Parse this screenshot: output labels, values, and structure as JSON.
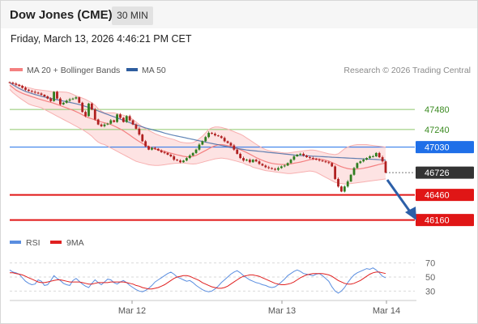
{
  "header": {
    "title": "Dow Jones (CME)",
    "timeframe": "30 MIN",
    "datetime": "Friday, March 13, 2026 4:46:21 PM CET"
  },
  "legend": {
    "bollinger": "MA 20 + Bollinger Bands",
    "ma50": "MA 50",
    "copyright": "Research © 2026 Trading Central"
  },
  "rsi_legend": {
    "rsi": "RSI",
    "ma9": "9MA"
  },
  "colors": {
    "bollinger": "#f48080",
    "band_fill": "#fde0e0",
    "ma50": "#2e5d9f",
    "support": "#e01616",
    "pivot": "#1f6fe8",
    "resistance": "#8dc86b",
    "candle_up": "#2f7d1f",
    "candle_down": "#b02020",
    "arrow": "#2c5fa8",
    "rsi": "#5a8ee0",
    "rsi_ma": "#e02020",
    "last": "#333333"
  },
  "chart_data": [
    {
      "type": "candlestick",
      "title": "Dow Jones (CME)",
      "timeframe": "30 MIN",
      "x_tick_labels": [
        "Mar 12",
        "Mar 13",
        "Mar 14"
      ],
      "ylim": [
        46050,
        47800
      ],
      "levels": [
        {
          "value": 47480,
          "label": "47480",
          "kind": "resistance"
        },
        {
          "value": 47240,
          "label": "47240",
          "kind": "resistance"
        },
        {
          "value": 47030,
          "label": "47030",
          "kind": "pivot"
        },
        {
          "value": 46726,
          "label": "46726",
          "kind": "last"
        },
        {
          "value": 46460,
          "label": "46460",
          "kind": "support"
        },
        {
          "value": 46160,
          "label": "46160",
          "kind": "support"
        }
      ],
      "close": [
        47800,
        47788,
        47775,
        47760,
        47738,
        47715,
        47700,
        47690,
        47680,
        47670,
        47655,
        47635,
        47610,
        47580,
        47690,
        47610,
        47540,
        47560,
        47585,
        47600,
        47610,
        47625,
        47560,
        47450,
        47400,
        47550,
        47480,
        47360,
        47300,
        47280,
        47300,
        47310,
        47350,
        47330,
        47420,
        47380,
        47330,
        47400,
        47350,
        47300,
        47250,
        47180,
        47100,
        47040,
        47000,
        47020,
        47010,
        46990,
        46970,
        46960,
        46940,
        46920,
        46880,
        46870,
        46850,
        46870,
        46900,
        46930,
        46960,
        47000,
        47060,
        47100,
        47150,
        47200,
        47190,
        47170,
        47160,
        47140,
        47100,
        47080,
        47050,
        47000,
        46950,
        46900,
        46870,
        46880,
        46850,
        46880,
        46860,
        46830,
        46810,
        46790,
        46780,
        46770,
        46760,
        46780,
        46800,
        46810,
        46840,
        46880,
        46920,
        46940,
        46950,
        46930,
        46910,
        46900,
        46890,
        46880,
        46870,
        46860,
        46850,
        46840,
        46800,
        46650,
        46560,
        46500,
        46560,
        46620,
        46700,
        46780,
        46840,
        46860,
        46880,
        46900,
        46920,
        46920,
        46960,
        46910,
        46860,
        46726
      ],
      "ma20": [
        47770,
        47740,
        47710,
        47690,
        47672,
        47658,
        47645,
        47632,
        47620,
        47608,
        47596,
        47585,
        47575,
        47565,
        47553,
        47540,
        47526,
        47512,
        47498,
        47484,
        47470,
        47454,
        47436,
        47416,
        47396,
        47380,
        47368,
        47356,
        47343,
        47330,
        47320,
        47310,
        47300,
        47284,
        47265,
        47246,
        47225,
        47200,
        47173,
        47146,
        47120,
        47096,
        47074,
        47053,
        47035,
        47020,
        47008,
        46998,
        46988,
        46978,
        46968,
        46958,
        46948,
        46938,
        46930,
        46920,
        46915,
        46914,
        46920,
        46932,
        46950,
        46970,
        46990,
        47010,
        47030,
        47045,
        47058,
        47060,
        47056,
        47048,
        47040,
        47030,
        47016,
        47000,
        46983,
        46966,
        46946,
        46926,
        46906,
        46888,
        46872,
        46858,
        46846,
        46836,
        46830,
        46826,
        46823,
        46822,
        46824,
        46830,
        46838,
        46845,
        46852,
        46860,
        46870,
        46880,
        46886,
        46890,
        46888,
        46882,
        46874,
        46862,
        46848,
        46830,
        46812,
        46796,
        46784,
        46774,
        46768,
        46766,
        46768,
        46772,
        46778,
        46786,
        46794,
        46804,
        46814,
        46824,
        46832,
        46840
      ],
      "ma50": [
        47800,
        47775,
        47752,
        47730,
        47712,
        47696,
        47682,
        47670,
        47658,
        47648,
        47638,
        47628,
        47620,
        47612,
        47604,
        47596,
        47588,
        47580,
        47572,
        47564,
        47556,
        47548,
        47538,
        47528,
        47516,
        47504,
        47490,
        47476,
        47462,
        47448,
        47434,
        47420,
        47406,
        47392,
        47378,
        47364,
        47350,
        47336,
        47322,
        47308,
        47296,
        47284,
        47272,
        47260,
        47250,
        47240,
        47230,
        47220,
        47210,
        47198,
        47188,
        47178,
        47170,
        47162,
        47154,
        47146,
        47138,
        47130,
        47122,
        47114,
        47106,
        47098,
        47090,
        47082,
        47074,
        47066,
        47058,
        47050,
        47042,
        47034,
        47026,
        47020,
        47014,
        47008,
        47002,
        46996,
        46992,
        46988,
        46984,
        46980,
        46976,
        46972,
        46968,
        46964,
        46960,
        46956,
        46952,
        46948,
        46944,
        46940,
        46936,
        46932,
        46930,
        46928,
        46926,
        46924,
        46922,
        46920,
        46918,
        46916,
        46914,
        46912,
        46910,
        46908,
        46906,
        46904,
        46902,
        46900,
        46898,
        46896,
        46894,
        46892,
        46890,
        46888,
        46886,
        46884,
        46882,
        46880,
        46878,
        46876
      ],
      "bb_upper": [
        47790,
        47790,
        47780,
        47770,
        47760,
        47745,
        47740,
        47730,
        47720,
        47715,
        47710,
        47705,
        47700,
        47695,
        47690,
        47690,
        47690,
        47688,
        47685,
        47675,
        47660,
        47640,
        47630,
        47615,
        47600,
        47580,
        47560,
        47530,
        47490,
        47460,
        47440,
        47440,
        47440,
        47440,
        47430,
        47420,
        47410,
        47400,
        47385,
        47360,
        47330,
        47300,
        47270,
        47250,
        47230,
        47210,
        47190,
        47175,
        47160,
        47150,
        47140,
        47130,
        47120,
        47105,
        47090,
        47085,
        47080,
        47080,
        47085,
        47100,
        47130,
        47160,
        47200,
        47240,
        47260,
        47270,
        47270,
        47265,
        47255,
        47245,
        47230,
        47215,
        47200,
        47185,
        47165,
        47140,
        47115,
        47090,
        47065,
        47040,
        47020,
        47000,
        46990,
        46980,
        46975,
        46970,
        46965,
        46960,
        46960,
        46965,
        46970,
        46975,
        46980,
        46985,
        46990,
        46995,
        46995,
        46990,
        46980,
        46970,
        46960,
        46950,
        46945,
        46940,
        46950,
        46980,
        47010,
        47030,
        47045,
        47055,
        47060,
        47060,
        47060,
        47060,
        47055,
        47050,
        47045,
        47040,
        47035,
        47030
      ],
      "bb_lower": [
        47720,
        47680,
        47650,
        47620,
        47595,
        47570,
        47545,
        47530,
        47520,
        47510,
        47500,
        47480,
        47460,
        47440,
        47420,
        47400,
        47380,
        47360,
        47340,
        47320,
        47300,
        47280,
        47260,
        47240,
        47215,
        47190,
        47160,
        47120,
        47090,
        47070,
        47060,
        47040,
        47020,
        47000,
        46980,
        46960,
        46940,
        46920,
        46900,
        46880,
        46860,
        46850,
        46840,
        46830,
        46820,
        46815,
        46812,
        46812,
        46815,
        46820,
        46825,
        46830,
        46835,
        46838,
        46840,
        46840,
        46835,
        46830,
        46828,
        46830,
        46840,
        46850,
        46860,
        46870,
        46880,
        46890,
        46895,
        46900,
        46895,
        46890,
        46880,
        46870,
        46860,
        46850,
        46840,
        46820,
        46810,
        46790,
        46780,
        46770,
        46760,
        46750,
        46745,
        46740,
        46735,
        46730,
        46725,
        46720,
        46715,
        46715,
        46720,
        46725,
        46730,
        46735,
        46740,
        46745,
        46740,
        46730,
        46710,
        46690,
        46670,
        46650,
        46630,
        46610,
        46600,
        46595,
        46590,
        46590,
        46595,
        46600,
        46605,
        46610,
        46615,
        46620,
        46625,
        46630,
        46635,
        46640,
        46645,
        46650
      ]
    },
    {
      "type": "line",
      "title": "RSI",
      "ylim": [
        20,
        80
      ],
      "ticks": [
        70,
        50,
        30
      ],
      "series": [
        {
          "name": "RSI",
          "values": [
            60,
            57,
            56,
            54,
            49,
            44,
            41,
            39,
            40,
            46,
            44,
            38,
            39,
            45,
            52,
            48,
            45,
            41,
            39,
            38,
            45,
            48,
            44,
            40,
            37,
            35,
            41,
            46,
            42,
            39,
            43,
            47,
            46,
            42,
            40,
            43,
            45,
            42,
            38,
            35,
            32,
            30,
            29,
            31,
            34,
            38,
            43,
            46,
            49,
            52,
            55,
            57,
            54,
            50,
            48,
            46,
            44,
            45,
            42,
            38,
            35,
            32,
            30,
            29,
            30,
            33,
            37,
            42,
            46,
            50,
            54,
            57,
            59,
            56,
            52,
            49,
            46,
            44,
            42,
            41,
            39,
            38,
            36,
            35,
            36,
            39,
            43,
            47,
            52,
            55,
            58,
            60,
            58,
            55,
            54,
            53,
            52,
            54,
            55,
            52,
            48,
            44,
            36,
            30,
            27,
            30,
            35,
            42,
            48,
            53,
            56,
            58,
            60,
            62,
            61,
            63,
            60,
            56,
            51,
            49
          ]
        },
        {
          "name": "9MA",
          "values": [
            56,
            56,
            55,
            54,
            53,
            51,
            49,
            47,
            45,
            43,
            42,
            42,
            43,
            44,
            45,
            46,
            46,
            45,
            44,
            43,
            43,
            43,
            43,
            42,
            41,
            40,
            40,
            41,
            42,
            42,
            42,
            42,
            43,
            43,
            43,
            43,
            43,
            42,
            41,
            40,
            38,
            37,
            35,
            34,
            33,
            33,
            34,
            35,
            37,
            39,
            42,
            45,
            48,
            50,
            51,
            52,
            52,
            51,
            49,
            47,
            45,
            42,
            40,
            38,
            36,
            35,
            34,
            34,
            35,
            37,
            40,
            43,
            46,
            49,
            51,
            52,
            53,
            53,
            52,
            51,
            49,
            47,
            45,
            43,
            41,
            40,
            39,
            39,
            40,
            41,
            43,
            46,
            49,
            51,
            53,
            54,
            55,
            55,
            55,
            55,
            54,
            53,
            51,
            48,
            45,
            43,
            41,
            40,
            40,
            41,
            43,
            45,
            48,
            51,
            54,
            56,
            57,
            57,
            56,
            55
          ]
        }
      ]
    }
  ]
}
